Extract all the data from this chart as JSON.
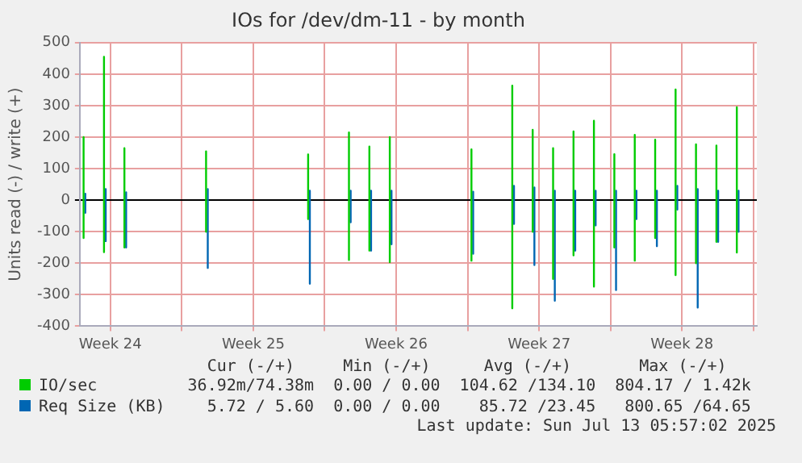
{
  "chart_data": {
    "type": "line",
    "title": "IOs for /dev/dm-11 - by month",
    "ylabel": "Units read (-) / write (+)",
    "series": [
      {
        "name": "IO/sec",
        "color": "#00cc00",
        "x": [
          "2025-06-11T04:30",
          "2025-06-11T04:30",
          "2025-06-11T08:00",
          "2025-06-12T04:30",
          "2025-06-12T04:30",
          "2025-06-12T08:00",
          "2025-06-13T04:30",
          "2025-06-13T04:30",
          "2025-06-13T08:00",
          "2025-06-17T04:30",
          "2025-06-17T04:30",
          "2025-06-17T08:00",
          "2025-06-22T04:30",
          "2025-06-22T04:30",
          "2025-06-22T08:00",
          "2025-06-24T04:30",
          "2025-06-24T04:30",
          "2025-06-24T08:00",
          "2025-06-25T04:30",
          "2025-06-25T04:30",
          "2025-06-25T08:00",
          "2025-06-26T04:30",
          "2025-06-26T04:30",
          "2025-06-26T08:00",
          "2025-06-30T04:30",
          "2025-06-30T04:30",
          "2025-06-30T08:00",
          "2025-07-02T04:30",
          "2025-07-02T04:30",
          "2025-07-02T08:00",
          "2025-07-03T04:30",
          "2025-07-03T04:30",
          "2025-07-03T08:00",
          "2025-07-04T04:30",
          "2025-07-04T04:30",
          "2025-07-04T08:00",
          "2025-07-05T04:30",
          "2025-07-05T04:30",
          "2025-07-05T08:00",
          "2025-07-06T04:30",
          "2025-07-06T04:30",
          "2025-07-06T08:00",
          "2025-07-07T04:30",
          "2025-07-07T04:30",
          "2025-07-07T08:00",
          "2025-07-08T04:30",
          "2025-07-08T04:30",
          "2025-07-08T08:00",
          "2025-07-09T04:30",
          "2025-07-09T04:30",
          "2025-07-09T08:00",
          "2025-07-10T04:30",
          "2025-07-10T04:30",
          "2025-07-10T08:00",
          "2025-07-11T04:30",
          "2025-07-11T04:30",
          "2025-07-11T08:00",
          "2025-07-12T04:30",
          "2025-07-12T04:30",
          "2025-07-12T08:00",
          "2025-07-13T04:30",
          "2025-07-13T04:30"
        ],
        "values": [
          200,
          -120,
          null,
          455,
          -165,
          null,
          165,
          -150,
          null,
          155,
          -100,
          null,
          145,
          -60,
          null,
          215,
          -190,
          null,
          170,
          -160,
          null,
          200,
          -197,
          null,
          161,
          -192,
          null,
          363,
          -343,
          null,
          223,
          -100,
          null,
          165,
          -250,
          null,
          218,
          -175,
          null,
          252,
          -274,
          null,
          146,
          -150,
          null,
          207,
          -192,
          null,
          192,
          -120,
          null,
          351,
          -238,
          null,
          177,
          -200,
          null,
          173,
          -132,
          null,
          295,
          -166
        ]
      },
      {
        "name": "Req Size (KB)",
        "color": "#0066b3",
        "x": [
          "2025-06-11T06:30",
          "2025-06-11T06:30",
          "2025-06-11T08:00",
          "2025-06-12T06:30",
          "2025-06-12T06:30",
          "2025-06-12T08:00",
          "2025-06-13T06:30",
          "2025-06-13T06:30",
          "2025-06-13T08:00",
          "2025-06-17T06:30",
          "2025-06-17T06:30",
          "2025-06-17T08:00",
          "2025-06-22T06:30",
          "2025-06-22T06:30",
          "2025-06-22T08:00",
          "2025-06-24T06:30",
          "2025-06-24T06:30",
          "2025-06-24T08:00",
          "2025-06-25T06:30",
          "2025-06-25T06:30",
          "2025-06-25T08:00",
          "2025-06-26T06:30",
          "2025-06-26T06:30",
          "2025-06-26T08:00",
          "2025-06-30T06:30",
          "2025-06-30T06:30",
          "2025-06-30T08:00",
          "2025-07-02T06:30",
          "2025-07-02T06:30",
          "2025-07-02T08:00",
          "2025-07-03T06:30",
          "2025-07-03T06:30",
          "2025-07-03T08:00",
          "2025-07-04T06:30",
          "2025-07-04T06:30",
          "2025-07-04T08:00",
          "2025-07-05T06:30",
          "2025-07-05T06:30",
          "2025-07-05T08:00",
          "2025-07-06T06:30",
          "2025-07-06T06:30",
          "2025-07-06T08:00",
          "2025-07-07T06:30",
          "2025-07-07T06:30",
          "2025-07-07T08:00",
          "2025-07-08T06:30",
          "2025-07-08T06:30",
          "2025-07-08T08:00",
          "2025-07-09T06:30",
          "2025-07-09T06:30",
          "2025-07-09T08:00",
          "2025-07-10T06:30",
          "2025-07-10T06:30",
          "2025-07-10T08:00",
          "2025-07-11T06:30",
          "2025-07-11T06:30",
          "2025-07-11T08:00",
          "2025-07-12T06:30",
          "2025-07-12T06:30",
          "2025-07-12T08:00",
          "2025-07-13T06:30",
          "2025-07-13T06:30"
        ],
        "values": [
          20,
          -40,
          null,
          35,
          -130,
          null,
          25,
          -150,
          null,
          35,
          -215,
          null,
          30,
          -265,
          null,
          30,
          -70,
          null,
          30,
          -160,
          null,
          30,
          -140,
          null,
          27,
          -170,
          null,
          45,
          -75,
          null,
          40,
          -206,
          null,
          30,
          -319,
          null,
          30,
          -160,
          null,
          30,
          -80,
          null,
          30,
          -285,
          null,
          30,
          -60,
          null,
          30,
          -146,
          null,
          45,
          -30,
          null,
          35,
          -341,
          null,
          30,
          -132,
          null,
          30,
          -100
        ]
      }
    ],
    "xlim": [
      "2025-06-11T00:00",
      "2025-07-14T04:00"
    ],
    "xticks": [
      {
        "value": "2025-06-12T12:00",
        "label": "Week 24"
      },
      {
        "value": "2025-06-16T00:00",
        "label": null
      },
      {
        "value": "2025-06-19T12:00",
        "label": "Week 25"
      },
      {
        "value": "2025-06-23T00:00",
        "label": null
      },
      {
        "value": "2025-06-26T12:00",
        "label": "Week 26"
      },
      {
        "value": "2025-06-30T00:00",
        "label": null
      },
      {
        "value": "2025-07-03T12:00",
        "label": "Week 27"
      },
      {
        "value": "2025-07-07T00:00",
        "label": null
      },
      {
        "value": "2025-07-10T12:00",
        "label": "Week 28"
      },
      {
        "value": "2025-07-14T00:00",
        "label": null
      }
    ],
    "ylim": [
      -400,
      500
    ],
    "yticks": [
      -400,
      -300,
      -200,
      -100,
      0,
      100,
      200,
      300,
      400,
      500
    ],
    "grid": true,
    "legend": "bottom",
    "marker": "none",
    "line_style": "solid",
    "annotations": [
      "Cur (-/+)",
      "Min (-/+)",
      "Avg (-/+)",
      "Max (-/+)",
      "36.92m/74.38m",
      "0.00 / 0.00",
      "104.62 /134.10",
      "804.17 / 1.42k",
      "5.72 / 5.60",
      "0.00 / 0.00",
      "85.72 /23.45",
      "800.65 /64.65",
      "Last update: Sun Jul 13 05:57:02 2025"
    ]
  }
}
